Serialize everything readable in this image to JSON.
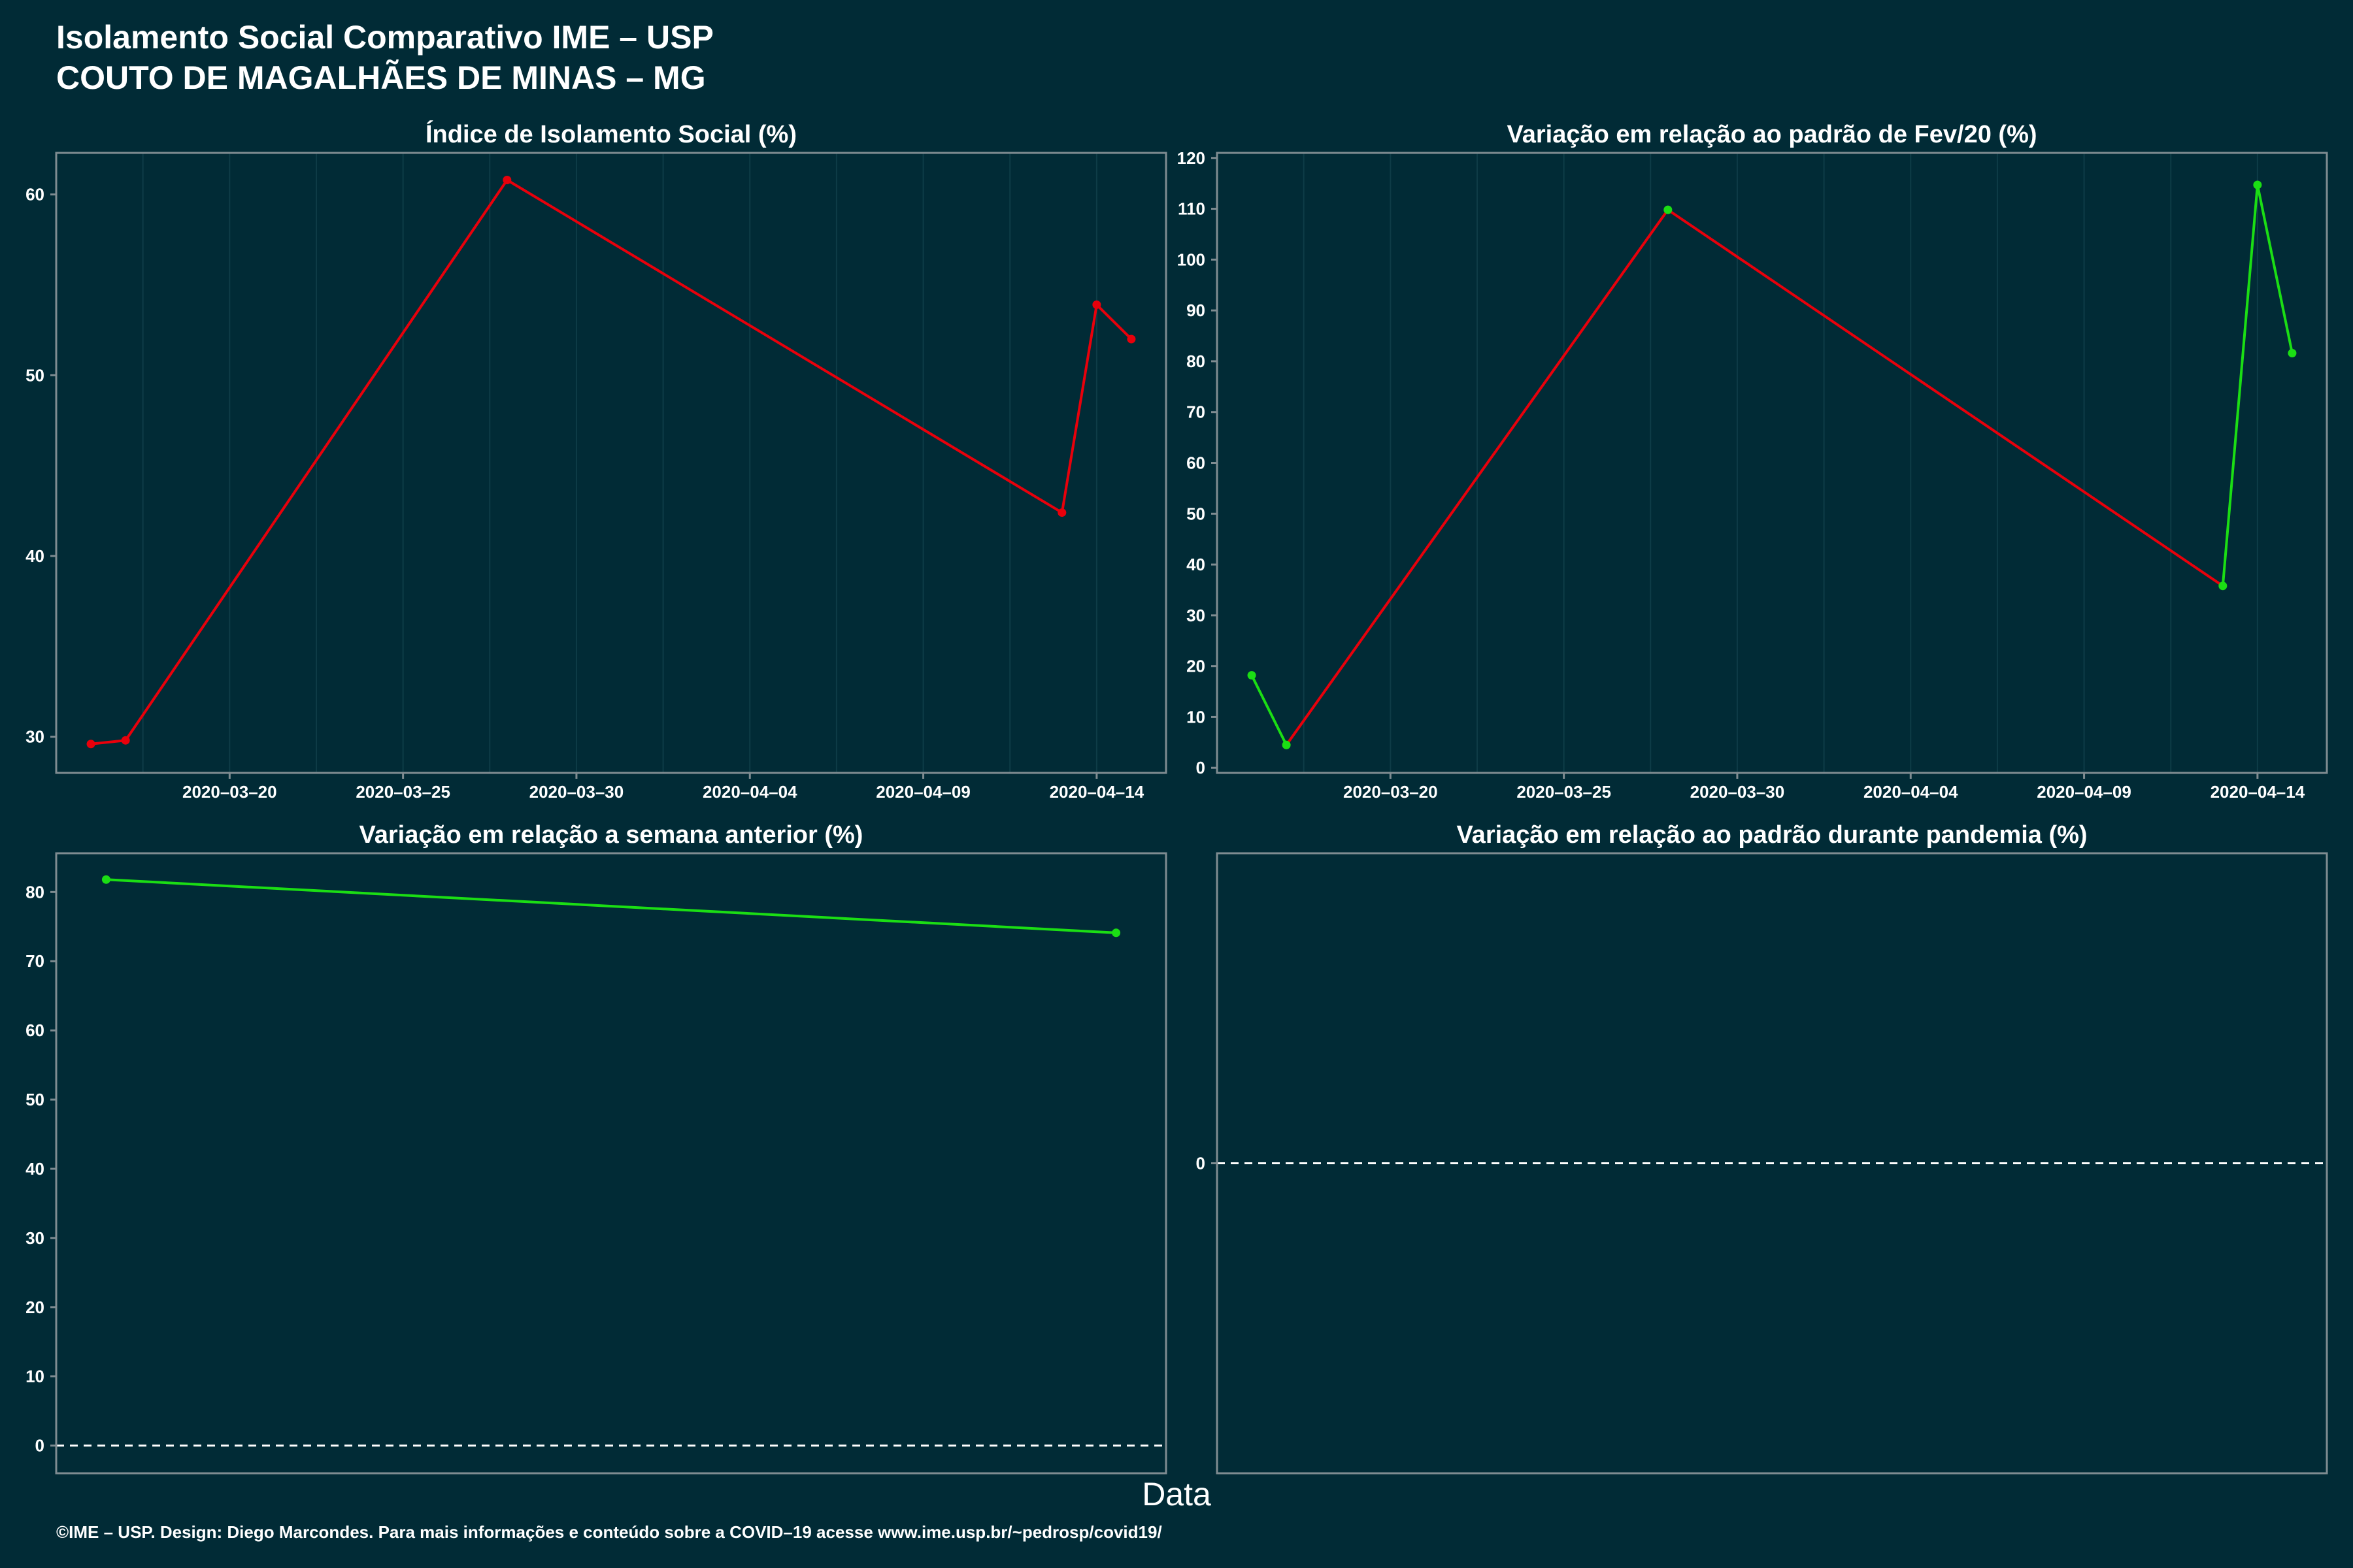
{
  "header": {
    "title_line1": "Isolamento Social Comparativo IME – USP",
    "title_line2": "COUTO DE MAGALHÃES DE MINAS – MG"
  },
  "footer": {
    "xlabel": "Data",
    "credits": "©IME – USP. Design: Diego Marcondes. Para mais informações e conteúdo sobre a COVID–19 acesse www.ime.usp.br/~pedrosp/covid19/"
  },
  "colors": {
    "background": "#012b36",
    "axis": "#7f8c91",
    "grid": "#0e3c47",
    "red": "#e8000b",
    "green": "#1bde14",
    "text": "#ffffff"
  },
  "chart_data": [
    {
      "type": "line",
      "title": "Índice de Isolamento Social (%)",
      "xlim": [
        "2020-03-15",
        "2020-04-16"
      ],
      "xticks": [
        "2020-03-20",
        "2020-03-25",
        "2020-03-30",
        "2020-04-04",
        "2020-04-09",
        "2020-04-14"
      ],
      "ylim": [
        28,
        62.3
      ],
      "yticks": [
        30,
        40,
        50,
        60
      ],
      "grid": true,
      "points": [
        {
          "x": "2020-03-16",
          "y": 29.6
        },
        {
          "x": "2020-03-17",
          "y": 29.8
        },
        {
          "x": "2020-03-28",
          "y": 60.8
        },
        {
          "x": "2020-04-13",
          "y": 42.4
        },
        {
          "x": "2020-04-14",
          "y": 53.9
        },
        {
          "x": "2020-04-15",
          "y": 52.0
        }
      ],
      "segment_colors": [
        "red",
        "red",
        "red",
        "red",
        "red"
      ],
      "point_colors": [
        "red",
        "red",
        "red",
        "red",
        "red",
        "red"
      ]
    },
    {
      "type": "line",
      "title": "Variação em relação ao padrão de Fev/20 (%)",
      "xlim": [
        "2020-03-15",
        "2020-04-16"
      ],
      "xticks": [
        "2020-03-20",
        "2020-03-25",
        "2020-03-30",
        "2020-04-04",
        "2020-04-09",
        "2020-04-14"
      ],
      "ylim": [
        -1,
        121
      ],
      "yticks": [
        0,
        10,
        20,
        30,
        40,
        50,
        60,
        70,
        80,
        90,
        100,
        110,
        120
      ],
      "grid": true,
      "points": [
        {
          "x": "2020-03-16",
          "y": 18.2
        },
        {
          "x": "2020-03-17",
          "y": 4.5
        },
        {
          "x": "2020-03-28",
          "y": 109.8
        },
        {
          "x": "2020-04-13",
          "y": 35.8
        },
        {
          "x": "2020-04-14",
          "y": 114.7
        },
        {
          "x": "2020-04-15",
          "y": 81.6
        }
      ],
      "segment_colors": [
        "green",
        "red",
        "red",
        "green",
        "green"
      ],
      "point_colors": [
        "green",
        "green",
        "green",
        "green",
        "green",
        "green"
      ]
    },
    {
      "type": "line",
      "title": "Variação em relação a semana anterior (%)",
      "xlim": [
        0,
        1
      ],
      "xticks": [],
      "ylim": [
        -4,
        85.6
      ],
      "yticks": [
        0,
        10,
        20,
        30,
        40,
        50,
        60,
        70,
        80
      ],
      "grid": false,
      "zero_line": true,
      "points": [
        {
          "x": 0.045,
          "y": 81.8
        },
        {
          "x": 0.955,
          "y": 74.1
        }
      ],
      "segment_colors": [
        "green"
      ],
      "point_colors": [
        "green",
        "green"
      ]
    },
    {
      "type": "line",
      "title": "Variação em relação ao padrão durante pandemia (%)",
      "xlim": [
        0,
        1
      ],
      "xticks": [],
      "ylim": [
        -1,
        1
      ],
      "yticks": [
        0
      ],
      "grid": false,
      "zero_line": true,
      "points": [],
      "segment_colors": [],
      "point_colors": []
    }
  ]
}
